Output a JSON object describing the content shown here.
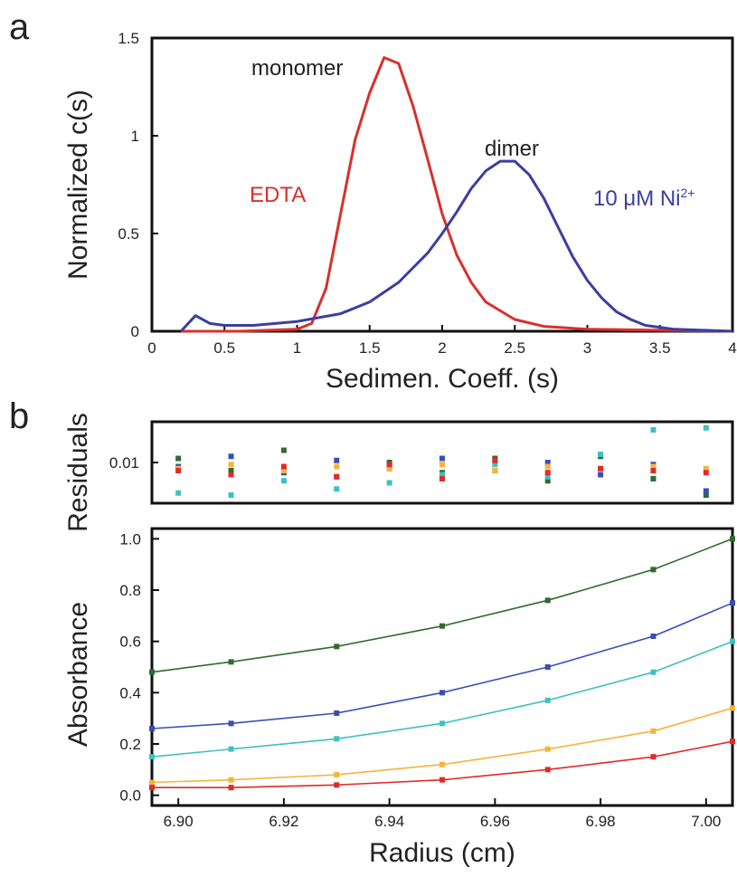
{
  "panel_labels": {
    "a": "a",
    "b": "b"
  },
  "chart_data": [
    {
      "type": "line",
      "panel": "a",
      "xlabel": "Sedimen. Coeff. (s)",
      "ylabel": "Normalized c(s)",
      "xlim": [
        0,
        4
      ],
      "ylim": [
        0,
        1.5
      ],
      "x_ticks": [
        "0",
        "0.5",
        "1",
        "1.5",
        "2",
        "2.5",
        "3",
        "3.5",
        "4"
      ],
      "y_ticks": [
        "0",
        "0.5",
        "1",
        "1.5"
      ],
      "annotations": [
        "monomer",
        "dimer",
        "EDTA",
        "10 μM Ni",
        "2+"
      ],
      "series": [
        {
          "name": "EDTA",
          "color": "#d9302c",
          "x": [
            0.2,
            0.6,
            1.0,
            1.1,
            1.2,
            1.3,
            1.4,
            1.5,
            1.6,
            1.7,
            1.8,
            1.9,
            2.0,
            2.1,
            2.2,
            2.3,
            2.5,
            2.7,
            3.0,
            3.5,
            4.0
          ],
          "y": [
            0,
            0,
            0.01,
            0.04,
            0.22,
            0.6,
            0.98,
            1.22,
            1.4,
            1.37,
            1.15,
            0.88,
            0.6,
            0.39,
            0.25,
            0.15,
            0.06,
            0.025,
            0.01,
            0.005,
            0.0
          ]
        },
        {
          "name": "10 μM Ni2+",
          "color": "#3a3f9e",
          "x": [
            0.2,
            0.3,
            0.4,
            0.5,
            0.7,
            1.0,
            1.3,
            1.5,
            1.7,
            1.9,
            2.0,
            2.1,
            2.2,
            2.3,
            2.4,
            2.5,
            2.6,
            2.7,
            2.8,
            2.9,
            3.0,
            3.1,
            3.2,
            3.3,
            3.4,
            3.6,
            3.8,
            4.0
          ],
          "y": [
            0,
            0.08,
            0.04,
            0.03,
            0.03,
            0.05,
            0.09,
            0.15,
            0.25,
            0.4,
            0.5,
            0.61,
            0.73,
            0.82,
            0.87,
            0.87,
            0.8,
            0.68,
            0.53,
            0.38,
            0.26,
            0.17,
            0.1,
            0.06,
            0.03,
            0.01,
            0.005,
            0.0
          ]
        }
      ]
    },
    {
      "type": "scatter",
      "panel": "b-top",
      "ylabel": "Residuals",
      "xlim": [
        6.895,
        7.005
      ],
      "ylim": [
        -0.01,
        0.03
      ],
      "y_ticks": [
        "0.01"
      ],
      "series": [
        {
          "name": "",
          "color": "#2f6b2f",
          "x": [
            6.9,
            6.91,
            6.92,
            6.93,
            6.94,
            6.95,
            6.96,
            6.97,
            6.98,
            6.99,
            7.0
          ],
          "y": [
            0.012,
            0.006,
            0.016,
            0.003,
            0.01,
            0.005,
            0.012,
            0.001,
            0.013,
            0.002,
            -0.006
          ]
        },
        {
          "name": "",
          "color": "#3a4db5",
          "x": [
            6.9,
            6.91,
            6.92,
            6.93,
            6.94,
            6.95,
            6.96,
            6.97,
            6.98,
            6.99,
            7.0
          ],
          "y": [
            0.008,
            0.013,
            0.005,
            0.011,
            0.007,
            0.012,
            0.006,
            0.01,
            0.004,
            0.009,
            -0.004
          ]
        },
        {
          "name": "",
          "color": "#3fc0c4",
          "x": [
            6.9,
            6.91,
            6.92,
            6.93,
            6.94,
            6.95,
            6.96,
            6.97,
            6.98,
            6.99,
            7.0
          ],
          "y": [
            -0.005,
            -0.006,
            0.001,
            -0.003,
            0.0,
            0.004,
            0.009,
            0.003,
            0.014,
            0.026,
            0.027
          ]
        },
        {
          "name": "",
          "color": "#f3b43c",
          "x": [
            6.9,
            6.91,
            6.92,
            6.93,
            6.94,
            6.95,
            6.96,
            6.97,
            6.98,
            6.99,
            7.0
          ],
          "y": [
            0.007,
            0.009,
            0.006,
            0.008,
            0.007,
            0.009,
            0.006,
            0.008,
            0.007,
            0.008,
            0.007
          ]
        },
        {
          "name": "",
          "color": "#e12a2a",
          "x": [
            6.9,
            6.91,
            6.92,
            6.93,
            6.94,
            6.95,
            6.96,
            6.97,
            6.98,
            6.99,
            7.0
          ],
          "y": [
            0.006,
            0.004,
            0.008,
            0.003,
            0.009,
            0.002,
            0.011,
            0.005,
            0.007,
            0.006,
            0.005
          ]
        }
      ]
    },
    {
      "type": "scatter",
      "panel": "b-bottom",
      "xlabel": "Radius (cm)",
      "ylabel": "Absorbance",
      "xlim": [
        6.895,
        7.005
      ],
      "ylim": [
        -0.04,
        1.04
      ],
      "x_ticks": [
        "6.90",
        "6.92",
        "6.94",
        "6.96",
        "6.98",
        "7.00"
      ],
      "y_ticks": [
        "0.0",
        "0.2",
        "0.4",
        "0.6",
        "0.8",
        "1.0"
      ],
      "series": [
        {
          "name": "",
          "color": "#2f6b2f",
          "x": [
            6.895,
            6.91,
            6.93,
            6.95,
            6.97,
            6.99,
            7.005
          ],
          "y": [
            0.48,
            0.52,
            0.58,
            0.66,
            0.76,
            0.88,
            1.0
          ]
        },
        {
          "name": "",
          "color": "#3a4db5",
          "x": [
            6.895,
            6.91,
            6.93,
            6.95,
            6.97,
            6.99,
            7.005
          ],
          "y": [
            0.26,
            0.28,
            0.32,
            0.4,
            0.5,
            0.62,
            0.75
          ]
        },
        {
          "name": "",
          "color": "#3fc0c4",
          "x": [
            6.895,
            6.91,
            6.93,
            6.95,
            6.97,
            6.99,
            7.005
          ],
          "y": [
            0.15,
            0.18,
            0.22,
            0.28,
            0.37,
            0.48,
            0.6
          ]
        },
        {
          "name": "",
          "color": "#f3b43c",
          "x": [
            6.895,
            6.91,
            6.93,
            6.95,
            6.97,
            6.99,
            7.005
          ],
          "y": [
            0.05,
            0.06,
            0.08,
            0.12,
            0.18,
            0.25,
            0.34
          ]
        },
        {
          "name": "",
          "color": "#e12a2a",
          "x": [
            6.895,
            6.91,
            6.93,
            6.95,
            6.97,
            6.99,
            7.005
          ],
          "y": [
            0.03,
            0.03,
            0.04,
            0.06,
            0.1,
            0.15,
            0.21
          ]
        }
      ]
    }
  ]
}
